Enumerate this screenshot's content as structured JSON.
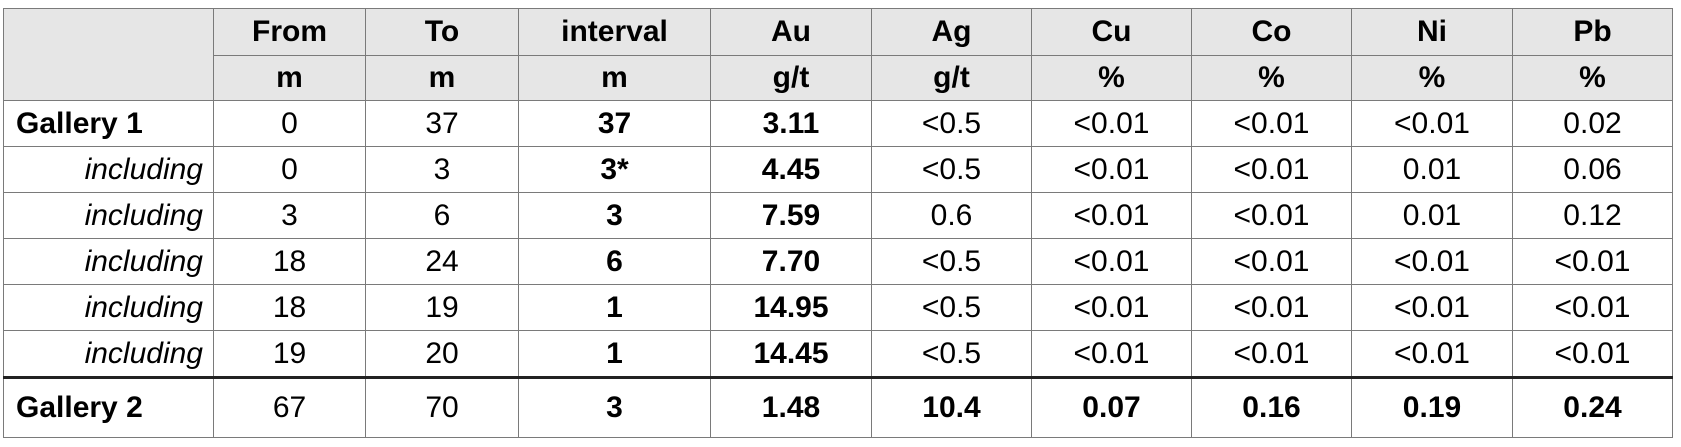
{
  "table": {
    "columns": [
      "From",
      "To",
      "interval",
      "Au",
      "Ag",
      "Cu",
      "Co",
      "Ni",
      "Pb"
    ],
    "units": [
      "m",
      "m",
      "m",
      "g/t",
      "g/t",
      "%",
      "%",
      "%",
      "%"
    ],
    "rows": [
      {
        "label": "Gallery 1",
        "cells": [
          "0",
          "37",
          "37",
          "3.11",
          "<0.5",
          "<0.01",
          "<0.01",
          "<0.01",
          "0.02"
        ]
      },
      {
        "label": "including",
        "cells": [
          "0",
          "3",
          "3*",
          "4.45",
          "<0.5",
          "<0.01",
          "<0.01",
          "0.01",
          "0.06"
        ]
      },
      {
        "label": "including",
        "cells": [
          "3",
          "6",
          "3",
          "7.59",
          "0.6",
          "<0.01",
          "<0.01",
          "0.01",
          "0.12"
        ]
      },
      {
        "label": "including",
        "cells": [
          "18",
          "24",
          "6",
          "7.70",
          "<0.5",
          "<0.01",
          "<0.01",
          "<0.01",
          "<0.01"
        ]
      },
      {
        "label": "including",
        "cells": [
          "18",
          "19",
          "1",
          "14.95",
          "<0.5",
          "<0.01",
          "<0.01",
          "<0.01",
          "<0.01"
        ]
      },
      {
        "label": "including",
        "cells": [
          "19",
          "20",
          "1",
          "14.45",
          "<0.5",
          "<0.01",
          "<0.01",
          "<0.01",
          "<0.01"
        ]
      },
      {
        "label": "Gallery 2",
        "cells": [
          "67",
          "70",
          "3",
          "1.48",
          "10.4",
          "0.07",
          "0.16",
          "0.19",
          "0.24"
        ]
      }
    ]
  }
}
